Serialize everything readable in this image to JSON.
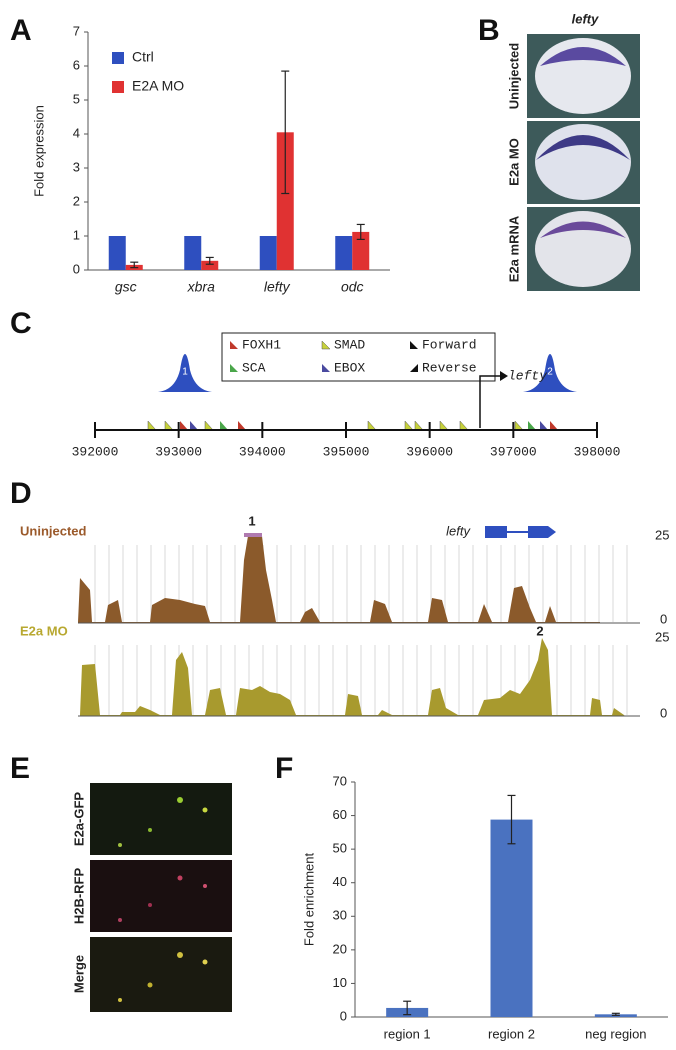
{
  "panel_labels": [
    "A",
    "B",
    "C",
    "D",
    "E",
    "F"
  ],
  "chart_data": [
    {
      "type": "bar",
      "ylabel": "Fold expression",
      "categories": [
        "gsc",
        "xbra",
        "lefty",
        "odc"
      ],
      "series": [
        {
          "name": "Ctrl",
          "color": "#2e4fbf",
          "values": [
            1,
            1,
            1,
            1
          ]
        },
        {
          "name": "E2A MO",
          "color": "#e03232",
          "values": [
            0.15,
            0.27,
            4.05,
            1.12
          ],
          "errors": [
            0.08,
            0.1,
            1.8,
            0.22
          ]
        }
      ],
      "ylim": [
        0,
        7
      ],
      "yticks": [
        0,
        1,
        2,
        3,
        4,
        5,
        6,
        7
      ]
    },
    {
      "type": "bar",
      "ylabel": "Fold enrichment",
      "categories": [
        "region 1",
        "region 2",
        "neg region"
      ],
      "series": [
        {
          "color": "#4a72c0",
          "values": [
            2.7,
            58.8,
            0.8
          ],
          "errors": [
            2,
            7.2,
            0.3
          ]
        }
      ],
      "ylim": [
        0,
        70
      ],
      "yticks": [
        0,
        10,
        20,
        30,
        40,
        50,
        60,
        70
      ]
    }
  ],
  "in_situ": {
    "title": "lefty",
    "conditions": [
      "Uninjected",
      "E2a MO",
      "E2a mRNA"
    ]
  },
  "motif_map": {
    "legend": [
      "FOXH1",
      "SMAD",
      "Forward",
      "SCA",
      "EBOX",
      "Reverse"
    ],
    "peaks": [
      "1",
      "2"
    ],
    "gene": "lefty",
    "axis_ticks": [
      392000,
      393000,
      394000,
      395000,
      396000,
      397000,
      398000
    ]
  },
  "chip_tracks": {
    "gene": "lefty",
    "peak_labels": [
      "1",
      "2"
    ],
    "tracks": [
      {
        "name": "Uninjected",
        "max": 25,
        "min": 0
      },
      {
        "name": "E2a MO",
        "max": 25,
        "min": 0
      }
    ]
  },
  "fluorescence": {
    "channels": [
      "E2a-GFP",
      "H2B-RFP",
      "Merge"
    ]
  }
}
